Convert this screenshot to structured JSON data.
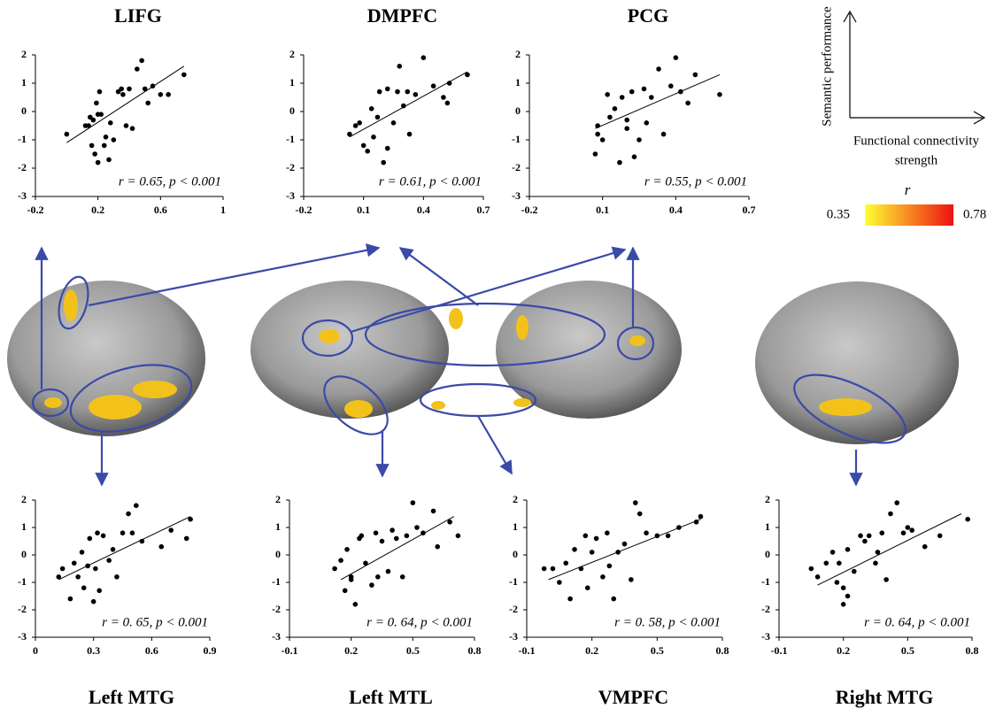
{
  "chart_data": [
    {
      "type": "scatter",
      "title": "LIFG",
      "annotation": "r = 0.65, p < 0.001",
      "color": "#000000",
      "x": [
        0.0,
        0.12,
        0.15,
        0.16,
        0.18,
        0.2,
        0.22,
        0.17,
        0.14,
        0.19,
        0.21,
        0.25,
        0.27,
        0.24,
        0.3,
        0.33,
        0.36,
        0.35,
        0.38,
        0.4,
        0.42,
        0.45,
        0.48,
        0.5,
        0.52,
        0.55,
        0.6,
        0.65,
        0.75,
        0.2,
        0.28
      ],
      "values": [
        -0.8,
        -0.5,
        -0.2,
        -1.2,
        -1.5,
        -1.8,
        -0.1,
        -0.3,
        -0.5,
        0.3,
        0.7,
        -0.9,
        -1.7,
        -1.2,
        -1.0,
        0.7,
        0.6,
        0.8,
        -0.5,
        0.8,
        -0.6,
        1.5,
        1.8,
        0.8,
        0.3,
        0.9,
        0.6,
        0.6,
        1.3,
        -0.1,
        -0.4
      ],
      "trend_line": {
        "x": [
          0.0,
          0.75
        ],
        "y": [
          -1.1,
          1.6
        ]
      },
      "xlim": [
        -0.2,
        1
      ],
      "xticks": [
        -0.2,
        0.2,
        0.6,
        1
      ],
      "ylim": [
        -3,
        2
      ],
      "yticks": [
        -3,
        -2,
        -1,
        0,
        1,
        2
      ]
    },
    {
      "type": "scatter",
      "title": "DMPFC",
      "annotation": "r = 0.61, p < 0.001",
      "color": "#000000",
      "x": [
        0.03,
        0.06,
        0.08,
        0.1,
        0.12,
        0.14,
        0.15,
        0.17,
        0.18,
        0.2,
        0.22,
        0.22,
        0.25,
        0.27,
        0.28,
        0.3,
        0.32,
        0.33,
        0.36,
        0.4,
        0.45,
        0.5,
        0.52,
        0.53,
        0.62
      ],
      "values": [
        -0.8,
        -0.5,
        -0.4,
        -1.2,
        -1.4,
        0.1,
        -0.9,
        -0.2,
        0.7,
        -1.8,
        -1.3,
        0.8,
        -0.4,
        0.7,
        1.6,
        0.2,
        0.7,
        -0.8,
        0.6,
        1.9,
        0.9,
        0.5,
        0.3,
        1.0,
        1.3
      ],
      "trend_line": {
        "x": [
          0.03,
          0.62
        ],
        "y": [
          -0.9,
          1.4
        ]
      },
      "xlim": [
        -0.2,
        0.7
      ],
      "xticks": [
        -0.2,
        0.1,
        0.4,
        0.7
      ],
      "ylim": [
        -3,
        2
      ],
      "yticks": [
        -3,
        -2,
        -1,
        0,
        1,
        2
      ]
    },
    {
      "type": "scatter",
      "title": "PCG",
      "annotation": "r = 0.55, p < 0.001",
      "color": "#000000",
      "x": [
        0.07,
        0.08,
        0.08,
        0.1,
        0.12,
        0.13,
        0.15,
        0.17,
        0.18,
        0.2,
        0.22,
        0.23,
        0.25,
        0.27,
        0.28,
        0.3,
        0.33,
        0.35,
        0.38,
        0.4,
        0.42,
        0.45,
        0.48,
        0.58,
        0.2
      ],
      "values": [
        -1.5,
        -0.8,
        -0.5,
        -1.0,
        0.6,
        -0.2,
        0.1,
        -1.8,
        0.5,
        -0.3,
        0.7,
        -1.6,
        -1.0,
        0.8,
        -0.4,
        0.5,
        1.5,
        -0.8,
        0.9,
        1.9,
        0.7,
        0.3,
        1.3,
        0.6,
        -0.6
      ],
      "trend_line": {
        "x": [
          0.07,
          0.58
        ],
        "y": [
          -0.6,
          1.3
        ]
      },
      "xlim": [
        -0.2,
        0.7
      ],
      "xticks": [
        -0.2,
        0.1,
        0.4,
        0.7
      ],
      "ylim": [
        -3,
        2
      ],
      "yticks": [
        -3,
        -2,
        -1,
        0,
        1,
        2
      ]
    },
    {
      "type": "scatter",
      "title": "Left MTG",
      "annotation": "r = 0. 65, p < 0.001",
      "color": "#000000",
      "x": [
        0.12,
        0.14,
        0.18,
        0.2,
        0.22,
        0.24,
        0.25,
        0.27,
        0.28,
        0.3,
        0.31,
        0.32,
        0.33,
        0.35,
        0.38,
        0.4,
        0.42,
        0.45,
        0.48,
        0.5,
        0.52,
        0.55,
        0.65,
        0.7,
        0.78,
        0.8
      ],
      "values": [
        -0.8,
        -0.5,
        -1.6,
        -0.3,
        -0.8,
        0.1,
        -1.2,
        -0.4,
        0.6,
        -1.7,
        -0.5,
        0.8,
        -1.3,
        0.7,
        -0.2,
        0.2,
        -0.8,
        0.8,
        1.5,
        0.8,
        1.8,
        0.5,
        0.3,
        0.9,
        0.6,
        1.3
      ],
      "trend_line": {
        "x": [
          0.12,
          0.8
        ],
        "y": [
          -0.9,
          1.4
        ]
      },
      "xlim": [
        0,
        0.9
      ],
      "xticks": [
        0,
        0.3,
        0.6,
        0.9
      ],
      "ylim": [
        -3,
        2
      ],
      "yticks": [
        -3,
        -2,
        -1,
        0,
        1,
        2
      ]
    },
    {
      "type": "scatter",
      "title": "Left MTL",
      "annotation": "r = 0. 64, p < 0.001",
      "color": "#000000",
      "x": [
        0.12,
        0.15,
        0.17,
        0.18,
        0.2,
        0.22,
        0.24,
        0.25,
        0.27,
        0.3,
        0.32,
        0.33,
        0.35,
        0.38,
        0.4,
        0.42,
        0.45,
        0.47,
        0.5,
        0.52,
        0.55,
        0.6,
        0.62,
        0.68,
        0.72,
        0.2
      ],
      "values": [
        -0.5,
        -0.2,
        -1.3,
        0.2,
        -0.9,
        -1.8,
        0.6,
        0.7,
        -0.3,
        -1.1,
        0.8,
        -0.8,
        0.5,
        -0.6,
        0.9,
        0.6,
        -0.8,
        0.7,
        1.9,
        1.0,
        0.8,
        1.6,
        0.3,
        1.2,
        0.7,
        -0.8
      ],
      "trend_line": {
        "x": [
          0.15,
          0.7
        ],
        "y": [
          -0.9,
          1.4
        ]
      },
      "xlim": [
        -0.1,
        0.8
      ],
      "xticks": [
        -0.1,
        0.2,
        0.5,
        0.8
      ],
      "ylim": [
        -3,
        2
      ],
      "yticks": [
        -3,
        -2,
        -1,
        0,
        1,
        2
      ]
    },
    {
      "type": "scatter",
      "title": "VMPFC",
      "annotation": "r = 0. 58, p < 0.001",
      "color": "#000000",
      "x": [
        -0.02,
        0.02,
        0.05,
        0.08,
        0.1,
        0.12,
        0.15,
        0.17,
        0.18,
        0.2,
        0.22,
        0.25,
        0.27,
        0.28,
        0.3,
        0.32,
        0.35,
        0.38,
        0.4,
        0.42,
        0.45,
        0.5,
        0.55,
        0.6,
        0.68,
        0.7
      ],
      "values": [
        -0.5,
        -0.5,
        -1.0,
        -0.3,
        -1.6,
        0.2,
        -0.5,
        0.7,
        -1.2,
        0.1,
        0.6,
        -0.8,
        0.8,
        -0.4,
        -1.6,
        0.1,
        0.4,
        -0.9,
        1.9,
        1.5,
        0.8,
        0.7,
        0.7,
        1.0,
        1.2,
        1.4
      ],
      "trend_line": {
        "x": [
          0.0,
          0.7
        ],
        "y": [
          -0.9,
          1.3
        ]
      },
      "xlim": [
        -0.1,
        0.8
      ],
      "xticks": [
        -0.1,
        0.2,
        0.5,
        0.8
      ],
      "ylim": [
        -3,
        2
      ],
      "yticks": [
        -3,
        -2,
        -1,
        0,
        1,
        2
      ]
    },
    {
      "type": "scatter",
      "title": "Right MTG",
      "annotation": "r = 0. 64, p < 0.001",
      "color": "#000000",
      "x": [
        0.05,
        0.08,
        0.12,
        0.15,
        0.17,
        0.18,
        0.2,
        0.2,
        0.22,
        0.22,
        0.25,
        0.28,
        0.3,
        0.32,
        0.35,
        0.36,
        0.38,
        0.4,
        0.42,
        0.45,
        0.48,
        0.5,
        0.52,
        0.58,
        0.65,
        0.78
      ],
      "values": [
        -0.5,
        -0.8,
        -0.3,
        0.1,
        -1.0,
        -0.3,
        -1.8,
        -1.2,
        0.2,
        -1.5,
        -0.6,
        0.7,
        0.5,
        0.7,
        -0.3,
        0.1,
        0.8,
        -0.9,
        1.5,
        1.9,
        0.8,
        1.0,
        0.9,
        0.3,
        0.7,
        1.3
      ],
      "trend_line": {
        "x": [
          0.08,
          0.75
        ],
        "y": [
          -1.1,
          1.5
        ]
      },
      "xlim": [
        -0.1,
        0.8
      ],
      "xticks": [
        -0.1,
        0.2,
        0.5,
        0.8
      ],
      "ylim": [
        -3,
        2
      ],
      "yticks": [
        -3,
        -2,
        -1,
        0,
        1,
        2
      ]
    }
  ],
  "key": {
    "y_label": "Semantic performance",
    "x_label": [
      "Functional connectivity",
      "strength"
    ],
    "colorbar": {
      "title": "r",
      "range": [
        0.35,
        0.78
      ],
      "colors": [
        "#ffff33",
        "#ee1111"
      ]
    }
  }
}
